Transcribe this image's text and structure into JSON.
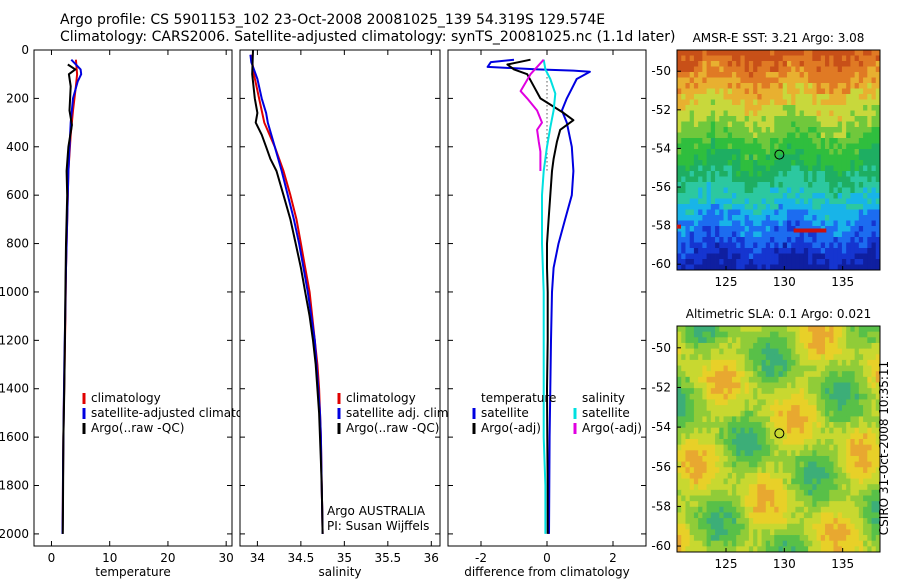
{
  "header": {
    "line1": "Argo profile: CS 5901153_102 23-Oct-2008 20081025_139 54.319S 129.574E",
    "line2": "Climatology: CARS2006. Satellite-adjusted climatology: synTS_20081025.nc (1.1d later)"
  },
  "side_text": "CSIRO 31-Oct-2008 10:35:11",
  "colors": {
    "red": "#e00000",
    "blue": "#0000e0",
    "black": "#000000",
    "cyan": "#00e0e0",
    "magenta": "#e000e0"
  },
  "chart_data": [
    {
      "type": "line",
      "id": "temperature",
      "xlabel": "temperature",
      "ylabel": "",
      "xlim": [
        -3,
        31
      ],
      "ylim": [
        2050,
        0
      ],
      "xticks": [
        0,
        10,
        20,
        30
      ],
      "yticks": [
        0,
        200,
        400,
        600,
        800,
        1000,
        1200,
        1400,
        1600,
        1800,
        2000
      ],
      "y_reversed": true,
      "legend": [
        {
          "label": "climatology",
          "color": "#e00000"
        },
        {
          "label": "satellite-adjusted climatology",
          "color": "#0000e0"
        },
        {
          "label": "Argo(..raw -QC)",
          "color": "#000000"
        }
      ],
      "series": [
        {
          "name": "climatology",
          "color": "#e00000",
          "points": [
            [
              4.2,
              40
            ],
            [
              4.4,
              100
            ],
            [
              4.2,
              150
            ],
            [
              3.7,
              250
            ],
            [
              3.3,
              350
            ],
            [
              2.9,
              500
            ],
            [
              2.7,
              700
            ],
            [
              2.5,
              900
            ],
            [
              2.4,
              1100
            ],
            [
              2.25,
              1300
            ],
            [
              2.1,
              1500
            ],
            [
              2.0,
              1700
            ],
            [
              1.95,
              1900
            ],
            [
              1.9,
              2000
            ]
          ]
        },
        {
          "name": "satellite-adjusted climatology",
          "color": "#0000e0",
          "points": [
            [
              3.4,
              40
            ],
            [
              5.0,
              80
            ],
            [
              5.1,
              100
            ],
            [
              4.5,
              130
            ],
            [
              3.7,
              200
            ],
            [
              3.3,
              300
            ],
            [
              2.9,
              500
            ],
            [
              2.7,
              700
            ],
            [
              2.5,
              900
            ],
            [
              2.35,
              1100
            ],
            [
              2.2,
              1300
            ],
            [
              2.1,
              1500
            ],
            [
              2.0,
              1700
            ],
            [
              1.95,
              1900
            ],
            [
              1.9,
              2000
            ]
          ]
        },
        {
          "name": "Argo(..raw -QC)",
          "color": "#000000",
          "points": [
            [
              2.8,
              60
            ],
            [
              4.1,
              80
            ],
            [
              3.0,
              100
            ],
            [
              3.3,
              150
            ],
            [
              3.1,
              250
            ],
            [
              3.5,
              310
            ],
            [
              2.9,
              400
            ],
            [
              2.6,
              500
            ],
            [
              2.7,
              600
            ],
            [
              2.5,
              800
            ],
            [
              2.4,
              1000
            ],
            [
              2.3,
              1200
            ],
            [
              2.2,
              1400
            ],
            [
              2.05,
              1600
            ],
            [
              2.0,
              1800
            ],
            [
              1.95,
              2000
            ]
          ]
        }
      ]
    },
    {
      "type": "line",
      "id": "salinity",
      "xlabel": "salinity",
      "ylabel": "",
      "xlim": [
        33.8,
        36.1
      ],
      "ylim": [
        2050,
        0
      ],
      "xticks": [
        34,
        34.5,
        35,
        35.5,
        36
      ],
      "y_reversed": true,
      "legend": [
        {
          "label": "climatology",
          "color": "#e00000"
        },
        {
          "label": "satellite adj. clim.",
          "color": "#0000e0"
        },
        {
          "label": "Argo(..raw -QC)",
          "color": "#000000"
        }
      ],
      "annotation": [
        "Argo AUSTRALIA",
        "PI: Susan Wijffels"
      ],
      "series": [
        {
          "name": "climatology",
          "color": "#e00000",
          "points": [
            [
              33.93,
              20
            ],
            [
              33.96,
              100
            ],
            [
              34.02,
              200
            ],
            [
              34.08,
              300
            ],
            [
              34.2,
              400
            ],
            [
              34.3,
              500
            ],
            [
              34.38,
              600
            ],
            [
              34.45,
              700
            ],
            [
              34.5,
              800
            ],
            [
              34.55,
              900
            ],
            [
              34.6,
              1000
            ],
            [
              34.63,
              1100
            ],
            [
              34.66,
              1200
            ],
            [
              34.69,
              1300
            ],
            [
              34.71,
              1400
            ],
            [
              34.72,
              1500
            ],
            [
              34.73,
              1600
            ],
            [
              34.735,
              1700
            ],
            [
              34.74,
              1800
            ],
            [
              34.745,
              1900
            ],
            [
              34.75,
              2000
            ]
          ]
        },
        {
          "name": "satellite adj. clim.",
          "color": "#0000e0",
          "points": [
            [
              33.92,
              20
            ],
            [
              33.93,
              50
            ],
            [
              34.0,
              120
            ],
            [
              34.05,
              200
            ],
            [
              34.1,
              260
            ],
            [
              34.12,
              300
            ],
            [
              34.2,
              400
            ],
            [
              34.28,
              500
            ],
            [
              34.35,
              600
            ],
            [
              34.42,
              700
            ],
            [
              34.48,
              800
            ],
            [
              34.53,
              900
            ],
            [
              34.58,
              1000
            ],
            [
              34.62,
              1100
            ],
            [
              34.66,
              1200
            ],
            [
              34.68,
              1300
            ],
            [
              34.7,
              1400
            ],
            [
              34.72,
              1500
            ],
            [
              34.73,
              1600
            ],
            [
              34.735,
              1700
            ],
            [
              34.74,
              1800
            ],
            [
              34.745,
              1900
            ],
            [
              34.75,
              2000
            ]
          ]
        },
        {
          "name": "Argo(..raw -QC)",
          "color": "#000000",
          "points": [
            [
              33.95,
              0
            ],
            [
              33.94,
              100
            ],
            [
              33.97,
              200
            ],
            [
              34.0,
              260
            ],
            [
              33.98,
              300
            ],
            [
              34.05,
              350
            ],
            [
              34.1,
              400
            ],
            [
              34.15,
              450
            ],
            [
              34.22,
              500
            ],
            [
              34.3,
              600
            ],
            [
              34.38,
              700
            ],
            [
              34.44,
              800
            ],
            [
              34.5,
              900
            ],
            [
              34.55,
              1000
            ],
            [
              34.6,
              1100
            ],
            [
              34.64,
              1200
            ],
            [
              34.67,
              1300
            ],
            [
              34.69,
              1400
            ],
            [
              34.71,
              1500
            ],
            [
              34.72,
              1600
            ],
            [
              34.73,
              1700
            ],
            [
              34.74,
              1800
            ],
            [
              34.745,
              1900
            ],
            [
              34.75,
              2000
            ]
          ]
        }
      ]
    },
    {
      "type": "line",
      "id": "difference",
      "xlabel": "difference from climatology",
      "ylabel": "",
      "xlim": [
        -3,
        3
      ],
      "ylim": [
        2050,
        0
      ],
      "xticks": [
        -2,
        0,
        2
      ],
      "y_reversed": true,
      "legend_temperature": {
        "heading": "temperature",
        "entries": [
          {
            "label": "satellite",
            "color": "#0000e0"
          },
          {
            "label": "Argo(-adj)",
            "color": "#000000"
          }
        ]
      },
      "legend_salinity": {
        "heading": "salinity",
        "entries": [
          {
            "label": "satellite",
            "color": "#00e0e0"
          },
          {
            "label": "Argo(-adj)",
            "color": "#e000e0"
          }
        ]
      },
      "series": [
        {
          "name": "temperature satellite",
          "color": "#0000e0",
          "points": [
            [
              -1.0,
              40
            ],
            [
              -1.7,
              50
            ],
            [
              -1.8,
              70
            ],
            [
              -0.3,
              80
            ],
            [
              0.8,
              85
            ],
            [
              1.3,
              90
            ],
            [
              0.9,
              120
            ],
            [
              0.75,
              160
            ],
            [
              0.6,
              200
            ],
            [
              0.45,
              250
            ],
            [
              0.6,
              300
            ],
            [
              0.75,
              400
            ],
            [
              0.8,
              500
            ],
            [
              0.75,
              600
            ],
            [
              0.55,
              700
            ],
            [
              0.35,
              800
            ],
            [
              0.2,
              900
            ],
            [
              0.15,
              1000
            ],
            [
              0.12,
              1200
            ],
            [
              0.1,
              1400
            ],
            [
              0.08,
              1600
            ],
            [
              0.07,
              1800
            ],
            [
              0.06,
              2000
            ]
          ]
        },
        {
          "name": "temperature Argo(-adj)",
          "color": "#000000",
          "points": [
            [
              -0.5,
              40
            ],
            [
              -1.2,
              60
            ],
            [
              -1.0,
              80
            ],
            [
              -0.6,
              100
            ],
            [
              -0.4,
              150
            ],
            [
              -0.2,
              200
            ],
            [
              0.5,
              260
            ],
            [
              0.8,
              290
            ],
            [
              0.4,
              330
            ],
            [
              0.3,
              380
            ],
            [
              0.2,
              450
            ],
            [
              0.15,
              500
            ],
            [
              0.1,
              600
            ],
            [
              0.05,
              700
            ],
            [
              0.0,
              800
            ],
            [
              0.0,
              900
            ],
            [
              0.02,
              1000
            ],
            [
              0.02,
              1200
            ],
            [
              0.0,
              1400
            ],
            [
              0.01,
              1600
            ],
            [
              0.02,
              1800
            ],
            [
              0.02,
              2000
            ]
          ]
        },
        {
          "name": "salinity satellite",
          "color": "#00e0e0",
          "points": [
            [
              -0.1,
              40
            ],
            [
              -0.05,
              80
            ],
            [
              0.1,
              120
            ],
            [
              0.25,
              180
            ],
            [
              0.2,
              250
            ],
            [
              0.1,
              320
            ],
            [
              0.0,
              400
            ],
            [
              -0.1,
              500
            ],
            [
              -0.15,
              600
            ],
            [
              -0.15,
              800
            ],
            [
              -0.1,
              1000
            ],
            [
              -0.1,
              1200
            ],
            [
              -0.1,
              1400
            ],
            [
              -0.1,
              1600
            ],
            [
              -0.05,
              1800
            ],
            [
              -0.05,
              2000
            ]
          ]
        },
        {
          "name": "salinity Argo(-adj)",
          "color": "#e000e0",
          "points": [
            [
              -0.1,
              40
            ],
            [
              -0.5,
              100
            ],
            [
              -0.8,
              170
            ],
            [
              -0.6,
              200
            ],
            [
              -0.3,
              250
            ],
            [
              -0.15,
              300
            ],
            [
              -0.3,
              330
            ],
            [
              -0.25,
              380
            ],
            [
              -0.2,
              420
            ],
            [
              -0.2,
              500
            ]
          ]
        }
      ]
    },
    {
      "type": "heatmap",
      "id": "amsre-sst",
      "title": "AMSR-E SST: 3.21 Argo: 3.08",
      "xlim": [
        120.8,
        138.2
      ],
      "ylim": [
        -60.3,
        -48.9
      ],
      "xticks": [
        125,
        130,
        135
      ],
      "yticks": [
        -50,
        -52,
        -54,
        -56,
        -58,
        -60
      ],
      "marker": {
        "x": 129.574,
        "y": -54.319
      },
      "colormap": "jet"
    },
    {
      "type": "heatmap",
      "id": "altimetric-sla",
      "title": "Altimetric SLA: 0.1 Argo: 0.021",
      "xlim": [
        120.8,
        138.2
      ],
      "ylim": [
        -60.3,
        -48.9
      ],
      "xticks": [
        125,
        130,
        135
      ],
      "yticks": [
        -50,
        -52,
        -54,
        -56,
        -58,
        -60
      ],
      "marker": {
        "x": 129.574,
        "y": -54.319
      },
      "colormap": "jet"
    }
  ]
}
